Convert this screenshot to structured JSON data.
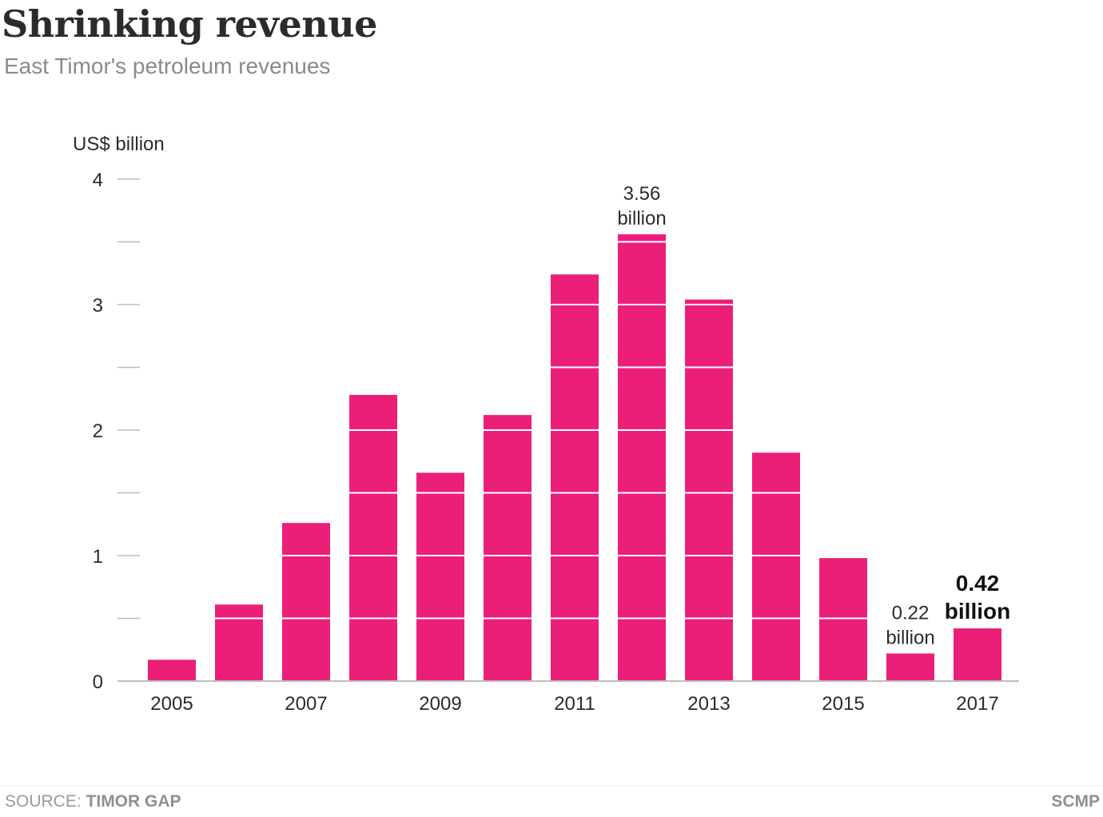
{
  "header": {
    "title": "Shrinking revenue",
    "subtitle": "East Timor's petroleum revenues"
  },
  "footer": {
    "source_label": "SOURCE:",
    "source_value": "TIMOR GAP",
    "brand": "SCMP"
  },
  "colors": {
    "bar": "#ec1f78",
    "text": "#2b2b2b",
    "muted": "#8a8a8a",
    "gridline_overlay": "#ffffff",
    "axis": "#bdbdbd"
  },
  "chart_data": {
    "type": "bar",
    "title": "Shrinking revenue",
    "subtitle": "East Timor's petroleum revenues",
    "ylabel": "US$ billion",
    "xlabel": "",
    "ylim": [
      0,
      4
    ],
    "y_ticks": [
      0,
      0.5,
      1,
      1.5,
      2,
      2.5,
      3,
      3.5,
      4
    ],
    "y_tick_labels": [
      "0",
      "",
      "1",
      "",
      "2",
      "",
      "3",
      "",
      "4"
    ],
    "grid": true,
    "legend": "none",
    "categories": [
      "2005",
      "2006",
      "2007",
      "2008",
      "2009",
      "2010",
      "2011",
      "2012",
      "2013",
      "2014",
      "2015",
      "2016",
      "2017"
    ],
    "x_tick_labels": [
      "2005",
      "",
      "2007",
      "",
      "2009",
      "",
      "2011",
      "",
      "2013",
      "",
      "2015",
      "",
      "2017"
    ],
    "values": [
      0.17,
      0.61,
      1.26,
      2.28,
      1.66,
      2.12,
      3.24,
      3.56,
      3.04,
      1.82,
      0.98,
      0.22,
      0.42
    ],
    "annotations": [
      {
        "category": "2012",
        "lines": [
          "3.56",
          "billion"
        ],
        "emphasis": false
      },
      {
        "category": "2016",
        "lines": [
          "0.22",
          "billion"
        ],
        "emphasis": false
      },
      {
        "category": "2017",
        "lines": [
          "0.42",
          "billion"
        ],
        "emphasis": true
      }
    ]
  }
}
